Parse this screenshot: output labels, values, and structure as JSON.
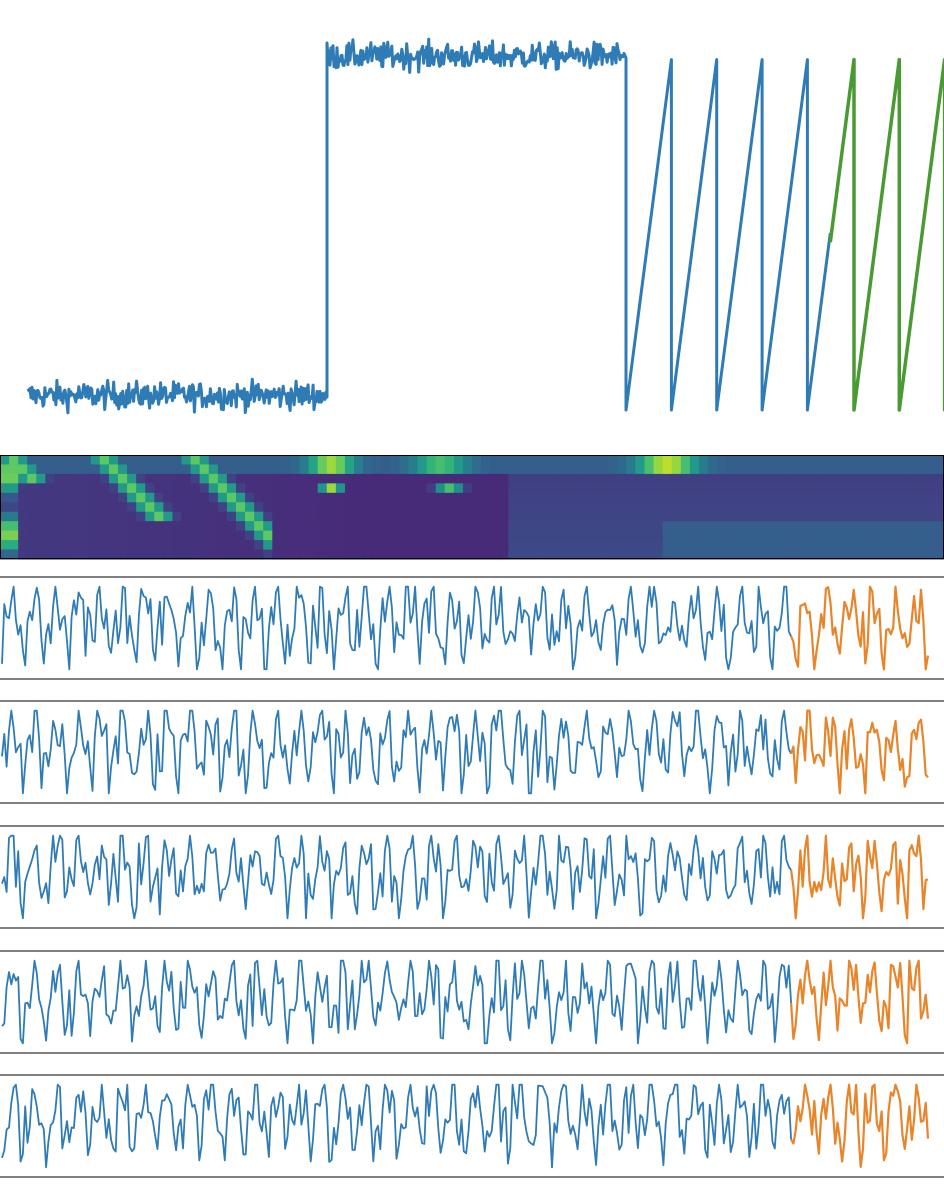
{
  "chart_data": [
    {
      "type": "line",
      "series": [
        {
          "role": "history",
          "color": "#2f7bb6",
          "segments": [
            {
              "kind": "noisy-level",
              "x_range": [
                0,
                300
              ],
              "level": 0.04,
              "noise": 0.018
            },
            {
              "kind": "step",
              "x": 300,
              "from": 0.04,
              "to": 1.0
            },
            {
              "kind": "noisy-level",
              "x_range": [
                300,
                600
              ],
              "level": 0.97,
              "noise": 0.018
            },
            {
              "kind": "sawtooth",
              "x_range": [
                600,
                805
              ],
              "period": 45.5,
              "min": 0.0,
              "max": 0.96
            }
          ]
        },
        {
          "role": "forecast",
          "color": "#4a9a34",
          "segments": [
            {
              "kind": "sawtooth",
              "x_range": [
                805,
                905
              ],
              "period": 45.5,
              "min": 0.0,
              "max": 0.96,
              "start_value": 0.46
            }
          ]
        }
      ]
    },
    {
      "type": "heatmap",
      "rows": 11,
      "cols": 104,
      "colormap": "viridis"
    },
    {
      "type": "line",
      "strips": 5,
      "colors": {
        "history": "#2f7bb6",
        "forecast": "#e8852a"
      },
      "history_length": 340,
      "forecast_length": 60,
      "period": 9.5
    }
  ]
}
